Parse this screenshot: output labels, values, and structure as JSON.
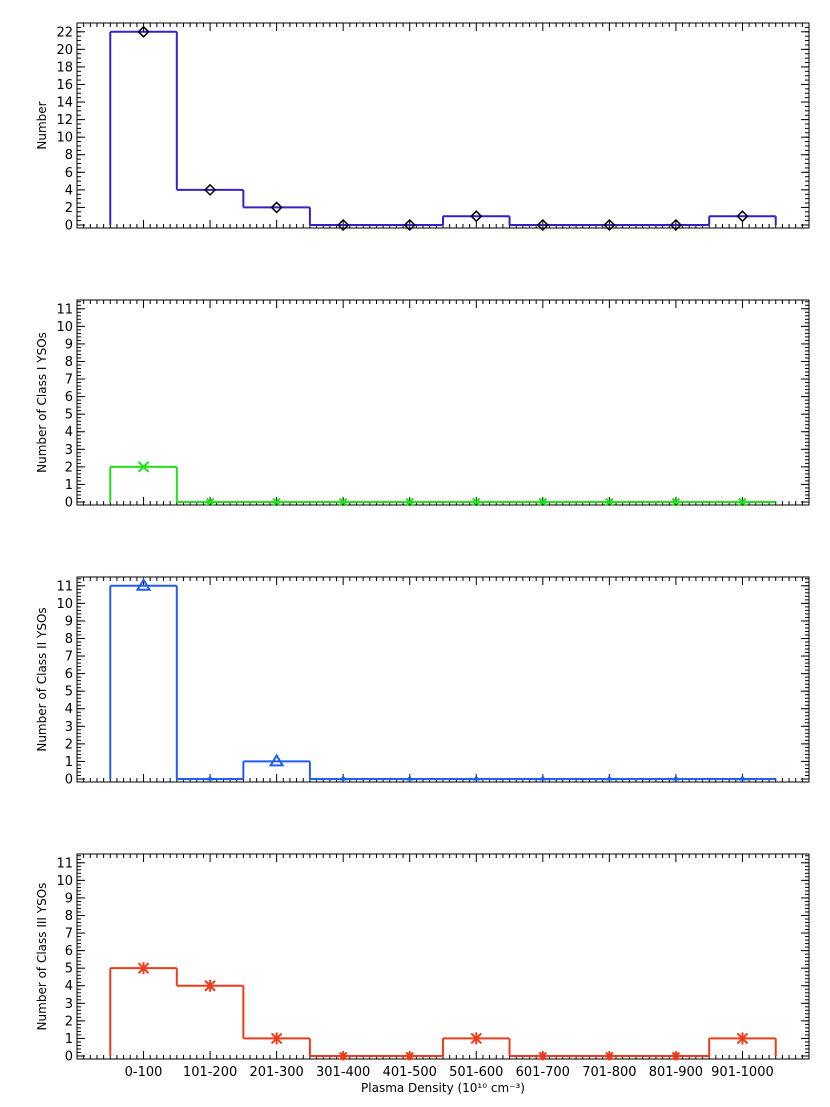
{
  "chart_data": [
    {
      "type": "bar",
      "style": "step-histogram",
      "marker": "diamond",
      "color": "#3a1fc9",
      "markerColor": "#000000",
      "ylabel": "Number",
      "xlabel": "",
      "ylim": [
        0,
        23
      ],
      "yticks": [
        0,
        2,
        4,
        6,
        8,
        10,
        12,
        14,
        16,
        18,
        20,
        22
      ],
      "categories": [
        "0-100",
        "101-200",
        "201-300",
        "301-400",
        "401-500",
        "501-600",
        "601-700",
        "701-800",
        "801-900",
        "901-1000"
      ],
      "values": [
        22,
        4,
        2,
        0,
        0,
        1,
        0,
        0,
        0,
        1
      ],
      "show_category_labels": false
    },
    {
      "type": "bar",
      "style": "step-histogram",
      "marker": "x",
      "color": "#22e01a",
      "markerColor": "#22e01a",
      "ylabel": "Number of Class I YSOs",
      "xlabel": "",
      "ylim": [
        0,
        11.5
      ],
      "yticks": [
        0,
        1,
        2,
        3,
        4,
        5,
        6,
        7,
        8,
        9,
        10,
        11
      ],
      "categories": [
        "0-100",
        "101-200",
        "201-300",
        "301-400",
        "401-500",
        "501-600",
        "601-700",
        "701-800",
        "801-900",
        "901-1000"
      ],
      "values": [
        2,
        0,
        0,
        0,
        0,
        0,
        0,
        0,
        0,
        0
      ],
      "show_category_labels": false
    },
    {
      "type": "bar",
      "style": "step-histogram",
      "marker": "triangle",
      "color": "#1f5ef0",
      "markerColor": "#1f5ef0",
      "ylabel": "Number of Class II YSOs",
      "xlabel": "",
      "ylim": [
        0,
        11.5
      ],
      "yticks": [
        0,
        1,
        2,
        3,
        4,
        5,
        6,
        7,
        8,
        9,
        10,
        11
      ],
      "categories": [
        "0-100",
        "101-200",
        "201-300",
        "301-400",
        "401-500",
        "501-600",
        "601-700",
        "701-800",
        "801-900",
        "901-1000"
      ],
      "values": [
        11,
        0,
        1,
        0,
        0,
        0,
        0,
        0,
        0,
        0
      ],
      "show_category_labels": false
    },
    {
      "type": "bar",
      "style": "step-histogram",
      "marker": "asterisk",
      "color": "#f03a1a",
      "markerColor": "#f03a1a",
      "ylabel": "Number of Class III YSOs",
      "xlabel": "Plasma Density (10¹⁰ cm⁻³)",
      "ylim": [
        0,
        11.5
      ],
      "yticks": [
        0,
        1,
        2,
        3,
        4,
        5,
        6,
        7,
        8,
        9,
        10,
        11
      ],
      "categories": [
        "0-100",
        "101-200",
        "201-300",
        "301-400",
        "401-500",
        "501-600",
        "601-700",
        "701-800",
        "801-900",
        "901-1000"
      ],
      "values": [
        5,
        4,
        1,
        0,
        0,
        1,
        0,
        0,
        0,
        1
      ],
      "show_category_labels": true
    }
  ]
}
